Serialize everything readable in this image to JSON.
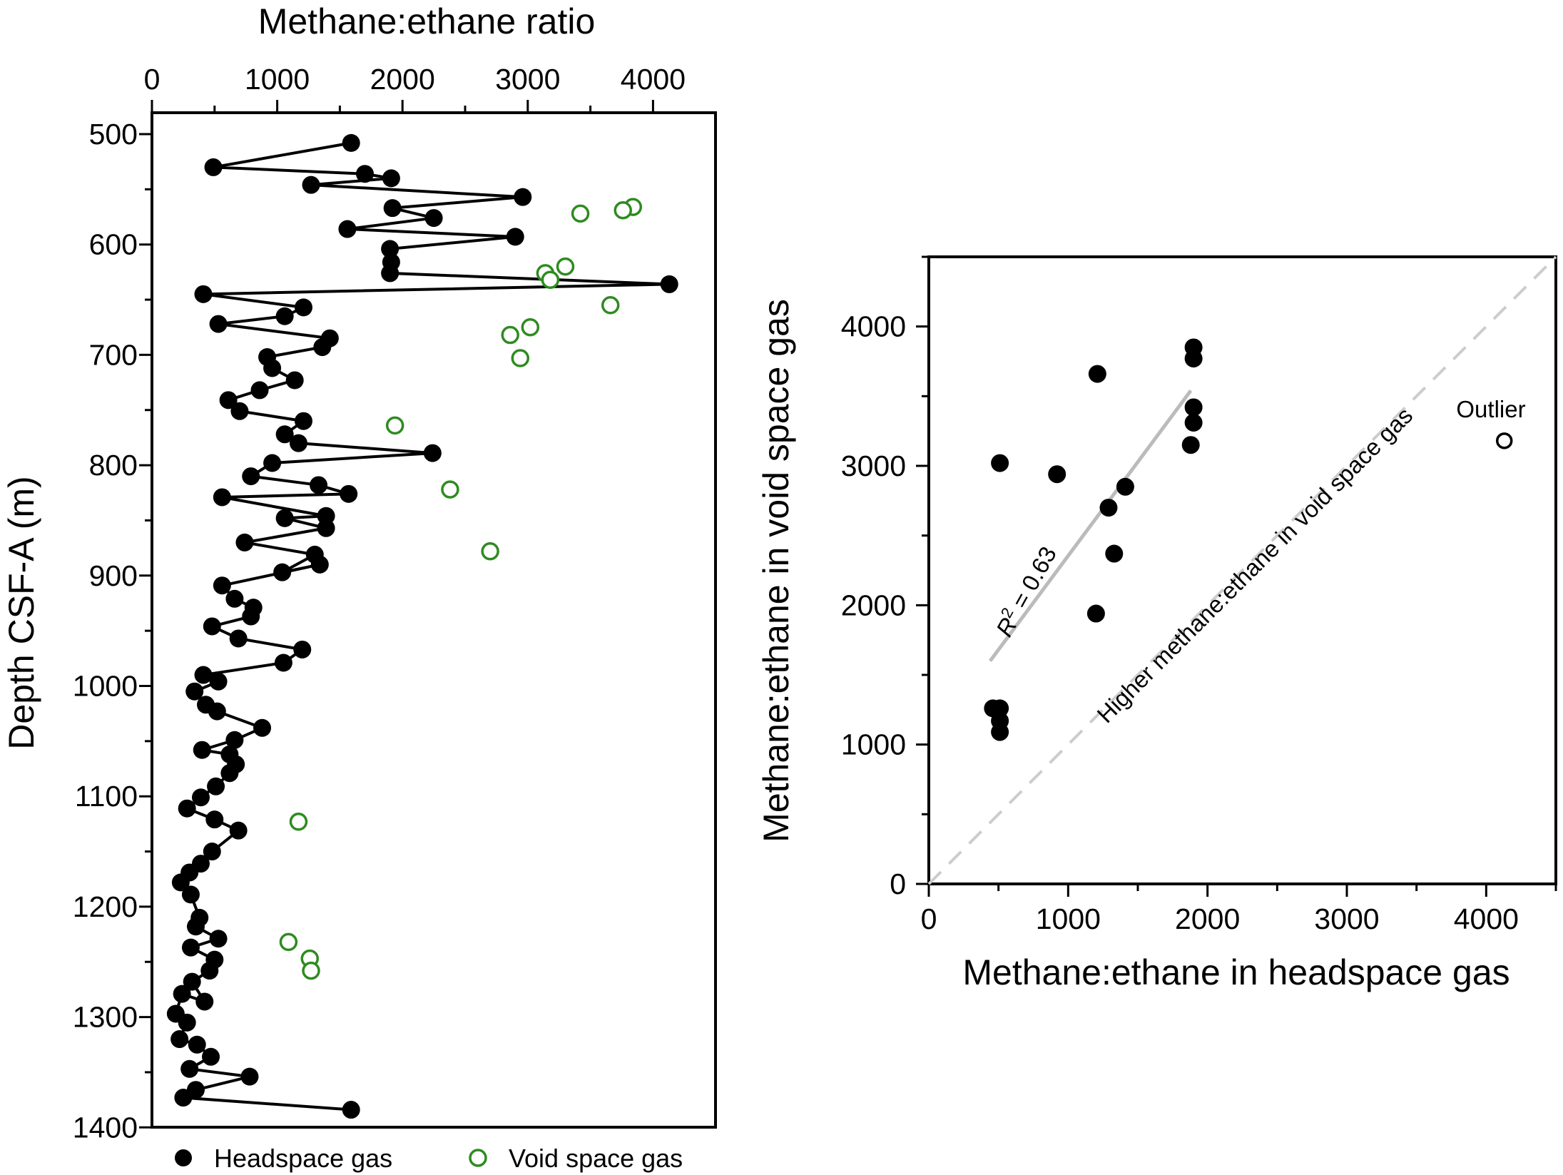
{
  "chart_data": [
    {
      "type": "line",
      "title": "",
      "xlabel": "Methane:ethane ratio",
      "ylabel": "Depth CSF-A (m)",
      "xlim": [
        0,
        4500
      ],
      "ylim": [
        1400,
        475
      ],
      "x_axis_position": "top",
      "y_inverted": true,
      "x_ticks": [
        0,
        1000,
        2000,
        3000,
        4000
      ],
      "x_tick_labels": [
        "0",
        "1000",
        "2000",
        "3000",
        "4000"
      ],
      "y_ticks": [
        500,
        600,
        700,
        800,
        900,
        1000,
        1100,
        1200,
        1300,
        1400
      ],
      "y_tick_labels": [
        "500",
        "600",
        "700",
        "800",
        "900",
        "1000",
        "1100",
        "1200",
        "1300",
        "1400"
      ],
      "grid": false,
      "legend_position": "bottom",
      "legend": [
        {
          "label": "Headspace gas",
          "marker": "filled-circle",
          "color": "#000000"
        },
        {
          "label": "Void space gas",
          "marker": "open-circle",
          "color": "#2e8b20"
        }
      ],
      "series": [
        {
          "name": "Headspace gas",
          "color": "#000000",
          "marker": "filled-circle",
          "connected": true,
          "points": [
            [
              1590,
              508
            ],
            [
              490,
              530
            ],
            [
              1700,
              536
            ],
            [
              1910,
              540
            ],
            [
              1270,
              546
            ],
            [
              2960,
              557
            ],
            [
              1920,
              567
            ],
            [
              2250,
              576
            ],
            [
              1560,
              586
            ],
            [
              2900,
              593
            ],
            [
              1900,
              604
            ],
            [
              1910,
              616
            ],
            [
              1900,
              626
            ],
            [
              4130,
              636
            ],
            [
              410,
              645
            ],
            [
              1210,
              657
            ],
            [
              1060,
              665
            ],
            [
              530,
              672
            ],
            [
              1420,
              685
            ],
            [
              1360,
              693
            ],
            [
              920,
              702
            ],
            [
              960,
              712
            ],
            [
              1140,
              723
            ],
            [
              860,
              732
            ],
            [
              610,
              741
            ],
            [
              700,
              751
            ],
            [
              1210,
              760
            ],
            [
              1060,
              772
            ],
            [
              1170,
              780
            ],
            [
              2240,
              789
            ],
            [
              960,
              798
            ],
            [
              790,
              810
            ],
            [
              1330,
              818
            ],
            [
              1570,
              826
            ],
            [
              560,
              829
            ],
            [
              1390,
              846
            ],
            [
              1060,
              848
            ],
            [
              1390,
              857
            ],
            [
              740,
              870
            ],
            [
              1300,
              881
            ],
            [
              1040,
              897
            ],
            [
              1340,
              890
            ],
            [
              560,
              909
            ],
            [
              660,
              921
            ],
            [
              810,
              929
            ],
            [
              790,
              937
            ],
            [
              480,
              946
            ],
            [
              690,
              957
            ],
            [
              1200,
              967
            ],
            [
              1050,
              979
            ],
            [
              410,
              990
            ],
            [
              530,
              996
            ],
            [
              340,
              1005
            ],
            [
              430,
              1017
            ],
            [
              520,
              1023
            ],
            [
              880,
              1038
            ],
            [
              660,
              1049
            ],
            [
              400,
              1058
            ],
            [
              620,
              1062
            ],
            [
              670,
              1071
            ],
            [
              620,
              1079
            ],
            [
              510,
              1091
            ],
            [
              390,
              1101
            ],
            [
              280,
              1111
            ],
            [
              500,
              1121
            ],
            [
              690,
              1131
            ],
            [
              480,
              1150
            ],
            [
              390,
              1161
            ],
            [
              300,
              1169
            ],
            [
              230,
              1178
            ],
            [
              310,
              1189
            ],
            [
              380,
              1210
            ],
            [
              350,
              1218
            ],
            [
              530,
              1229
            ],
            [
              310,
              1237
            ],
            [
              500,
              1248
            ],
            [
              460,
              1258
            ],
            [
              320,
              1268
            ],
            [
              420,
              1286
            ],
            [
              240,
              1279
            ],
            [
              190,
              1297
            ],
            [
              280,
              1305
            ],
            [
              220,
              1320
            ],
            [
              360,
              1325
            ],
            [
              470,
              1336
            ],
            [
              300,
              1347
            ],
            [
              780,
              1354
            ],
            [
              350,
              1366
            ],
            [
              250,
              1373
            ],
            [
              1590,
              1384
            ]
          ]
        },
        {
          "name": "Void space gas",
          "color": "#2e8b20",
          "marker": "open-circle",
          "connected": false,
          "points": [
            [
              3840,
              566
            ],
            [
              3760,
              569
            ],
            [
              3420,
              572
            ],
            [
              3300,
              620
            ],
            [
              3140,
              626
            ],
            [
              3180,
              632
            ],
            [
              3660,
              655
            ],
            [
              3020,
              675
            ],
            [
              2860,
              682
            ],
            [
              2940,
              703
            ],
            [
              1940,
              764
            ],
            [
              2380,
              822
            ],
            [
              2700,
              878
            ],
            [
              1170,
              1123
            ],
            [
              1090,
              1232
            ],
            [
              1260,
              1247
            ],
            [
              1270,
              1258
            ]
          ]
        }
      ]
    },
    {
      "type": "scatter",
      "title": "",
      "xlabel": "Methane:ethane in headspace gas",
      "ylabel": "Methane:ethane in void space gas",
      "xlim": [
        0,
        4500
      ],
      "ylim": [
        0,
        4500
      ],
      "x_ticks": [
        0,
        1000,
        2000,
        3000,
        4000
      ],
      "x_tick_labels": [
        "0",
        "1000",
        "2000",
        "3000",
        "4000"
      ],
      "y_ticks": [
        0,
        1000,
        2000,
        3000,
        4000
      ],
      "y_tick_labels": [
        "0",
        "1000",
        "2000",
        "3000",
        "4000"
      ],
      "grid": false,
      "series": [
        {
          "name": "",
          "marker": "filled-circle",
          "color": "#000000",
          "points": [
            [
              1900,
              3850
            ],
            [
              1900,
              3770
            ],
            [
              1210,
              3660
            ],
            [
              1900,
              3420
            ],
            [
              1900,
              3310
            ],
            [
              1880,
              3150
            ],
            [
              510,
              3020
            ],
            [
              920,
              2940
            ],
            [
              1410,
              2850
            ],
            [
              1290,
              2700
            ],
            [
              1330,
              2370
            ],
            [
              1200,
              1940
            ],
            [
              460,
              1260
            ],
            [
              510,
              1260
            ],
            [
              510,
              1170
            ],
            [
              510,
              1090
            ]
          ]
        },
        {
          "name": "",
          "marker": "open-circle",
          "color": "#000000",
          "points": [
            [
              4130,
              3180
            ]
          ]
        }
      ],
      "regression_line": {
        "color": "#bbbbbb",
        "from": [
          440,
          1600
        ],
        "to": [
          1880,
          3540
        ]
      },
      "one_to_one_line": {
        "color": "#cccccc",
        "style": "dashed",
        "from": [
          0,
          0
        ],
        "to": [
          4500,
          4500
        ]
      },
      "annotations": {
        "r2_label": "R",
        "r2_superscript": "2",
        "r2_value": " = 0.63",
        "region_label": "Higher methane:ethane in void space gas",
        "outlier_label": "Outlier"
      }
    }
  ]
}
